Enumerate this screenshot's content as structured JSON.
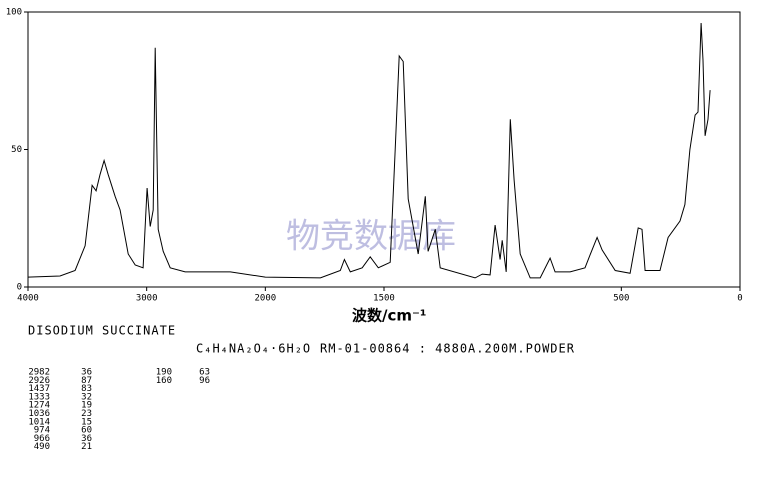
{
  "chart_data": {
    "type": "line",
    "xlabel": "波数/cm⁻¹",
    "watermark": "物竞数据库",
    "xlim": [
      4000,
      0
    ],
    "xbreak": 2000,
    "xticks": [
      4000,
      3000,
      2000,
      1500,
      500,
      0
    ],
    "ylim": [
      0,
      100
    ],
    "yticks": [
      0,
      50,
      100
    ],
    "color": "#000000",
    "x": [
      4000,
      3730,
      3603,
      3519,
      3460,
      3426,
      3392,
      3359,
      3325,
      3266,
      3224,
      3156,
      3097,
      3030,
      2996,
      2970,
      2945,
      2928,
      2903,
      2861,
      2802,
      2675,
      2295,
      2000,
      1768,
      1684,
      1667,
      1642,
      1592,
      1558,
      1524,
      1474,
      1453,
      1436,
      1419,
      1398,
      1356,
      1326,
      1314,
      1284,
      1263,
      1116,
      1086,
      1053,
      1032,
      1011,
      1002,
      985,
      968,
      952,
      926,
      884,
      842,
      800,
      779,
      716,
      653,
      632,
      602,
      581,
      526,
      463,
      429,
      413,
      400,
      337,
      303,
      253,
      232,
      211,
      189,
      177,
      164,
      156,
      147,
      135,
      126
    ],
    "y": [
      3.6,
      4,
      6,
      15,
      37,
      35,
      41,
      46,
      41,
      33,
      28,
      12,
      8,
      7,
      36,
      22,
      28,
      87,
      21,
      13,
      7,
      5.5,
      5.5,
      3.6,
      3.3,
      6,
      10,
      5.5,
      7,
      11,
      7,
      9,
      50,
      84,
      82,
      32,
      12,
      33,
      13,
      21,
      7,
      3.3,
      4.7,
      4.4,
      22.5,
      10,
      17,
      5.5,
      61,
      39,
      12,
      3.3,
      3.3,
      10.5,
      5.5,
      5.5,
      7,
      11.6,
      18,
      13.5,
      6,
      5,
      21.5,
      21,
      6,
      6,
      18,
      24,
      30,
      50,
      62.5,
      63.6,
      96,
      82.5,
      55,
      61,
      71.6
    ]
  },
  "info": {
    "name": "DISODIUM SUCCINATE",
    "formula": "C₄H₄NA₂O₄·6H₂O",
    "source": "RM-01-00864 : 4880A.200M.POWDER",
    "peaks": [
      [
        "2982",
        "36"
      ],
      [
        "2926",
        "87"
      ],
      [
        "1437",
        "83"
      ],
      [
        "1333",
        "32"
      ],
      [
        "1274",
        "19"
      ],
      [
        "1036",
        "23"
      ],
      [
        "1014",
        "15"
      ],
      [
        "974",
        "60"
      ],
      [
        "966",
        "36"
      ],
      [
        "490",
        "21"
      ]
    ],
    "peaks2": [
      [
        "190",
        "63"
      ],
      [
        "160",
        "96"
      ]
    ]
  }
}
